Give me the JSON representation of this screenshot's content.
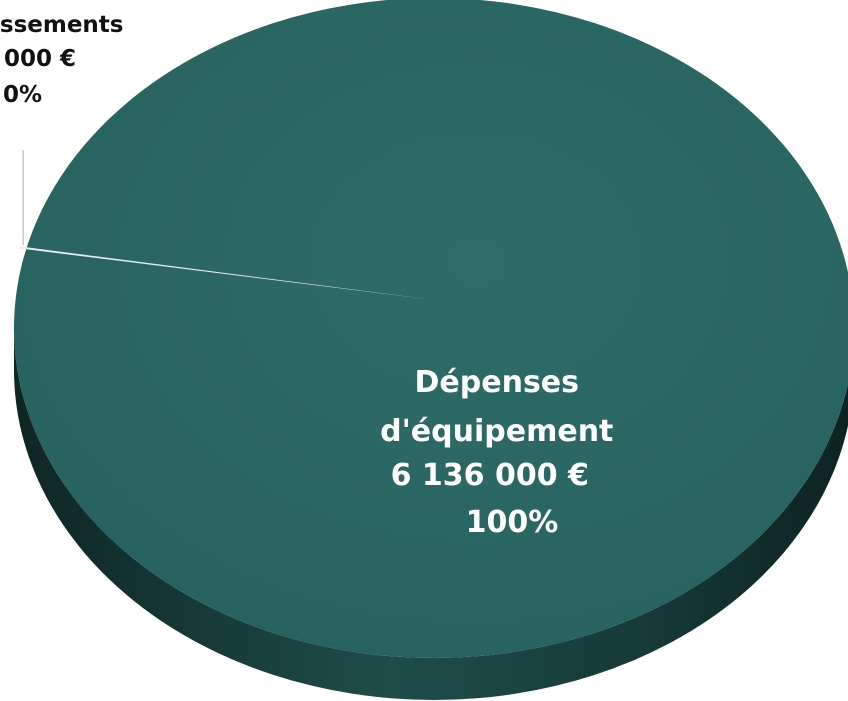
{
  "chart_data": {
    "type": "pie",
    "style": "3d",
    "slices": [
      {
        "label_lines": [
          "Dépenses",
          "d'équipement",
          "6 136 000 €",
          "100%"
        ],
        "value": 6136000,
        "percent": "100%",
        "color": "#2b6663"
      },
      {
        "label_lines": [
          "issements",
          "000 €",
          "0%"
        ],
        "value": 0,
        "percent": "0%",
        "color": "#3d7774"
      }
    ]
  }
}
